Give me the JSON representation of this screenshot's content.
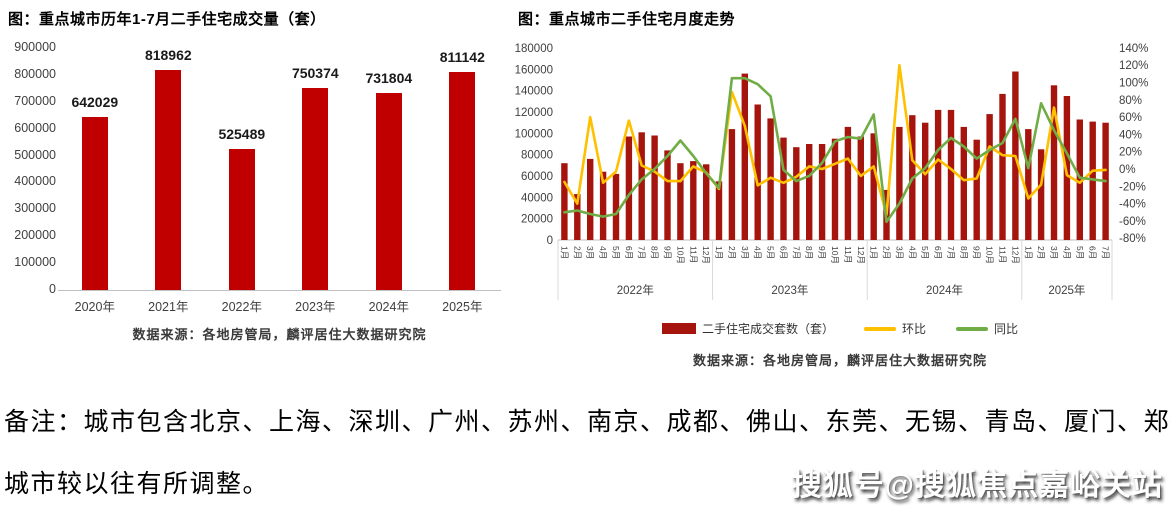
{
  "page": {
    "background": "#ffffff"
  },
  "watermark": "搜狐号@搜狐焦点嘉峪关站",
  "note": {
    "line1": "备注：城市包含北京、上海、深圳、广州、苏州、南京、成都、佛山、东莞、无锡、青岛、厦门、郑州，",
    "line2": "城市较以往有所调整。"
  },
  "chart_data": [
    {
      "type": "bar",
      "title": "图：重点城市历年1-7月二手住宅成交量（套）",
      "categories": [
        "2020年",
        "2021年",
        "2022年",
        "2023年",
        "2024年",
        "2025年"
      ],
      "values": [
        642029,
        818962,
        525489,
        750374,
        731804,
        811142
      ],
      "value_labels": [
        "642029",
        "818962",
        "525489",
        "750374",
        "731804",
        "811142"
      ],
      "ylim": [
        0,
        900000
      ],
      "y_tick_labels": [
        "900000",
        "800000",
        "700000",
        "600000",
        "500000",
        "400000",
        "300000",
        "200000",
        "100000",
        "0"
      ],
      "bar_color": "#c00000",
      "grid": false,
      "legend": "none",
      "source": "数据来源：各地房管局，麟评居住大数据研究院"
    },
    {
      "type": "bar+line",
      "title": "图：重点城市二手住宅月度走势",
      "x_labels": [
        "1月",
        "2月",
        "3月",
        "4月",
        "5月",
        "6月",
        "7月",
        "8月",
        "9月",
        "10月",
        "11月",
        "12月",
        "1月",
        "2月",
        "3月",
        "4月",
        "5月",
        "6月",
        "7月",
        "8月",
        "9月",
        "10月",
        "11月",
        "12月",
        "1月",
        "2月",
        "3月",
        "4月",
        "5月",
        "6月",
        "7月",
        "8月",
        "9月",
        "10月",
        "11月",
        "12月",
        "1月",
        "2月",
        "3月",
        "4月",
        "5月",
        "6月",
        "7月"
      ],
      "year_groups": [
        {
          "label": "2022年",
          "months": 12
        },
        {
          "label": "2023年",
          "months": 12
        },
        {
          "label": "2024年",
          "months": 12
        },
        {
          "label": "2025年",
          "months": 7
        }
      ],
      "left_axis": {
        "min": 0,
        "max": 180000,
        "step": 20000,
        "tick_labels": [
          "180000",
          "160000",
          "140000",
          "120000",
          "100000",
          "80000",
          "60000",
          "40000",
          "20000",
          "0"
        ]
      },
      "right_axis": {
        "min": -80,
        "max": 140,
        "step": 20,
        "tick_labels": [
          "140%",
          "120%",
          "100%",
          "80%",
          "60%",
          "40%",
          "20%",
          "0%",
          "-20%",
          "-40%",
          "-60%",
          "-80%"
        ]
      },
      "series": [
        {
          "name": "二手住宅成交套数（套）",
          "type": "bar",
          "axis": "left",
          "color": "#a6150d",
          "values": [
            72000,
            43000,
            76000,
            64000,
            62000,
            97000,
            101000,
            98000,
            84000,
            72000,
            74000,
            71000,
            55000,
            104000,
            156000,
            127000,
            114000,
            96000,
            87000,
            90000,
            90000,
            95000,
            106000,
            97000,
            100000,
            47000,
            106000,
            117000,
            110000,
            122000,
            122000,
            106000,
            94000,
            118000,
            137000,
            158000,
            104000,
            85000,
            145000,
            135000,
            113000,
            111000,
            110000
          ]
        },
        {
          "name": "环比",
          "type": "line",
          "axis": "right",
          "color": "#ffc000",
          "values": [
            -15,
            -40,
            60,
            -16,
            -3,
            56,
            4,
            -3,
            -14,
            -14,
            3,
            -4,
            -23,
            89,
            50,
            -19,
            -10,
            -16,
            -9,
            3,
            0,
            6,
            12,
            -8,
            3,
            -53,
            120,
            10,
            -6,
            11,
            0,
            -13,
            -11,
            26,
            16,
            15,
            -34,
            -18,
            71,
            -7,
            -16,
            -2,
            -1
          ]
        },
        {
          "name": "同比",
          "type": "line",
          "axis": "right",
          "color": "#70ad47",
          "values": [
            -50,
            -48,
            -52,
            -55,
            -52,
            -30,
            -12,
            0,
            15,
            33,
            15,
            -5,
            -22,
            105,
            105,
            98,
            84,
            -1,
            -14,
            -8,
            7,
            32,
            37,
            35,
            63,
            -61,
            -40,
            -11,
            1,
            22,
            36,
            26,
            12,
            22,
            30,
            58,
            1,
            76,
            45,
            18,
            -10,
            -12,
            -14
          ]
        }
      ],
      "legend_position": "bottom",
      "grid": false,
      "source": "数据来源：各地房管局，麟评居住大数据研究院"
    }
  ]
}
